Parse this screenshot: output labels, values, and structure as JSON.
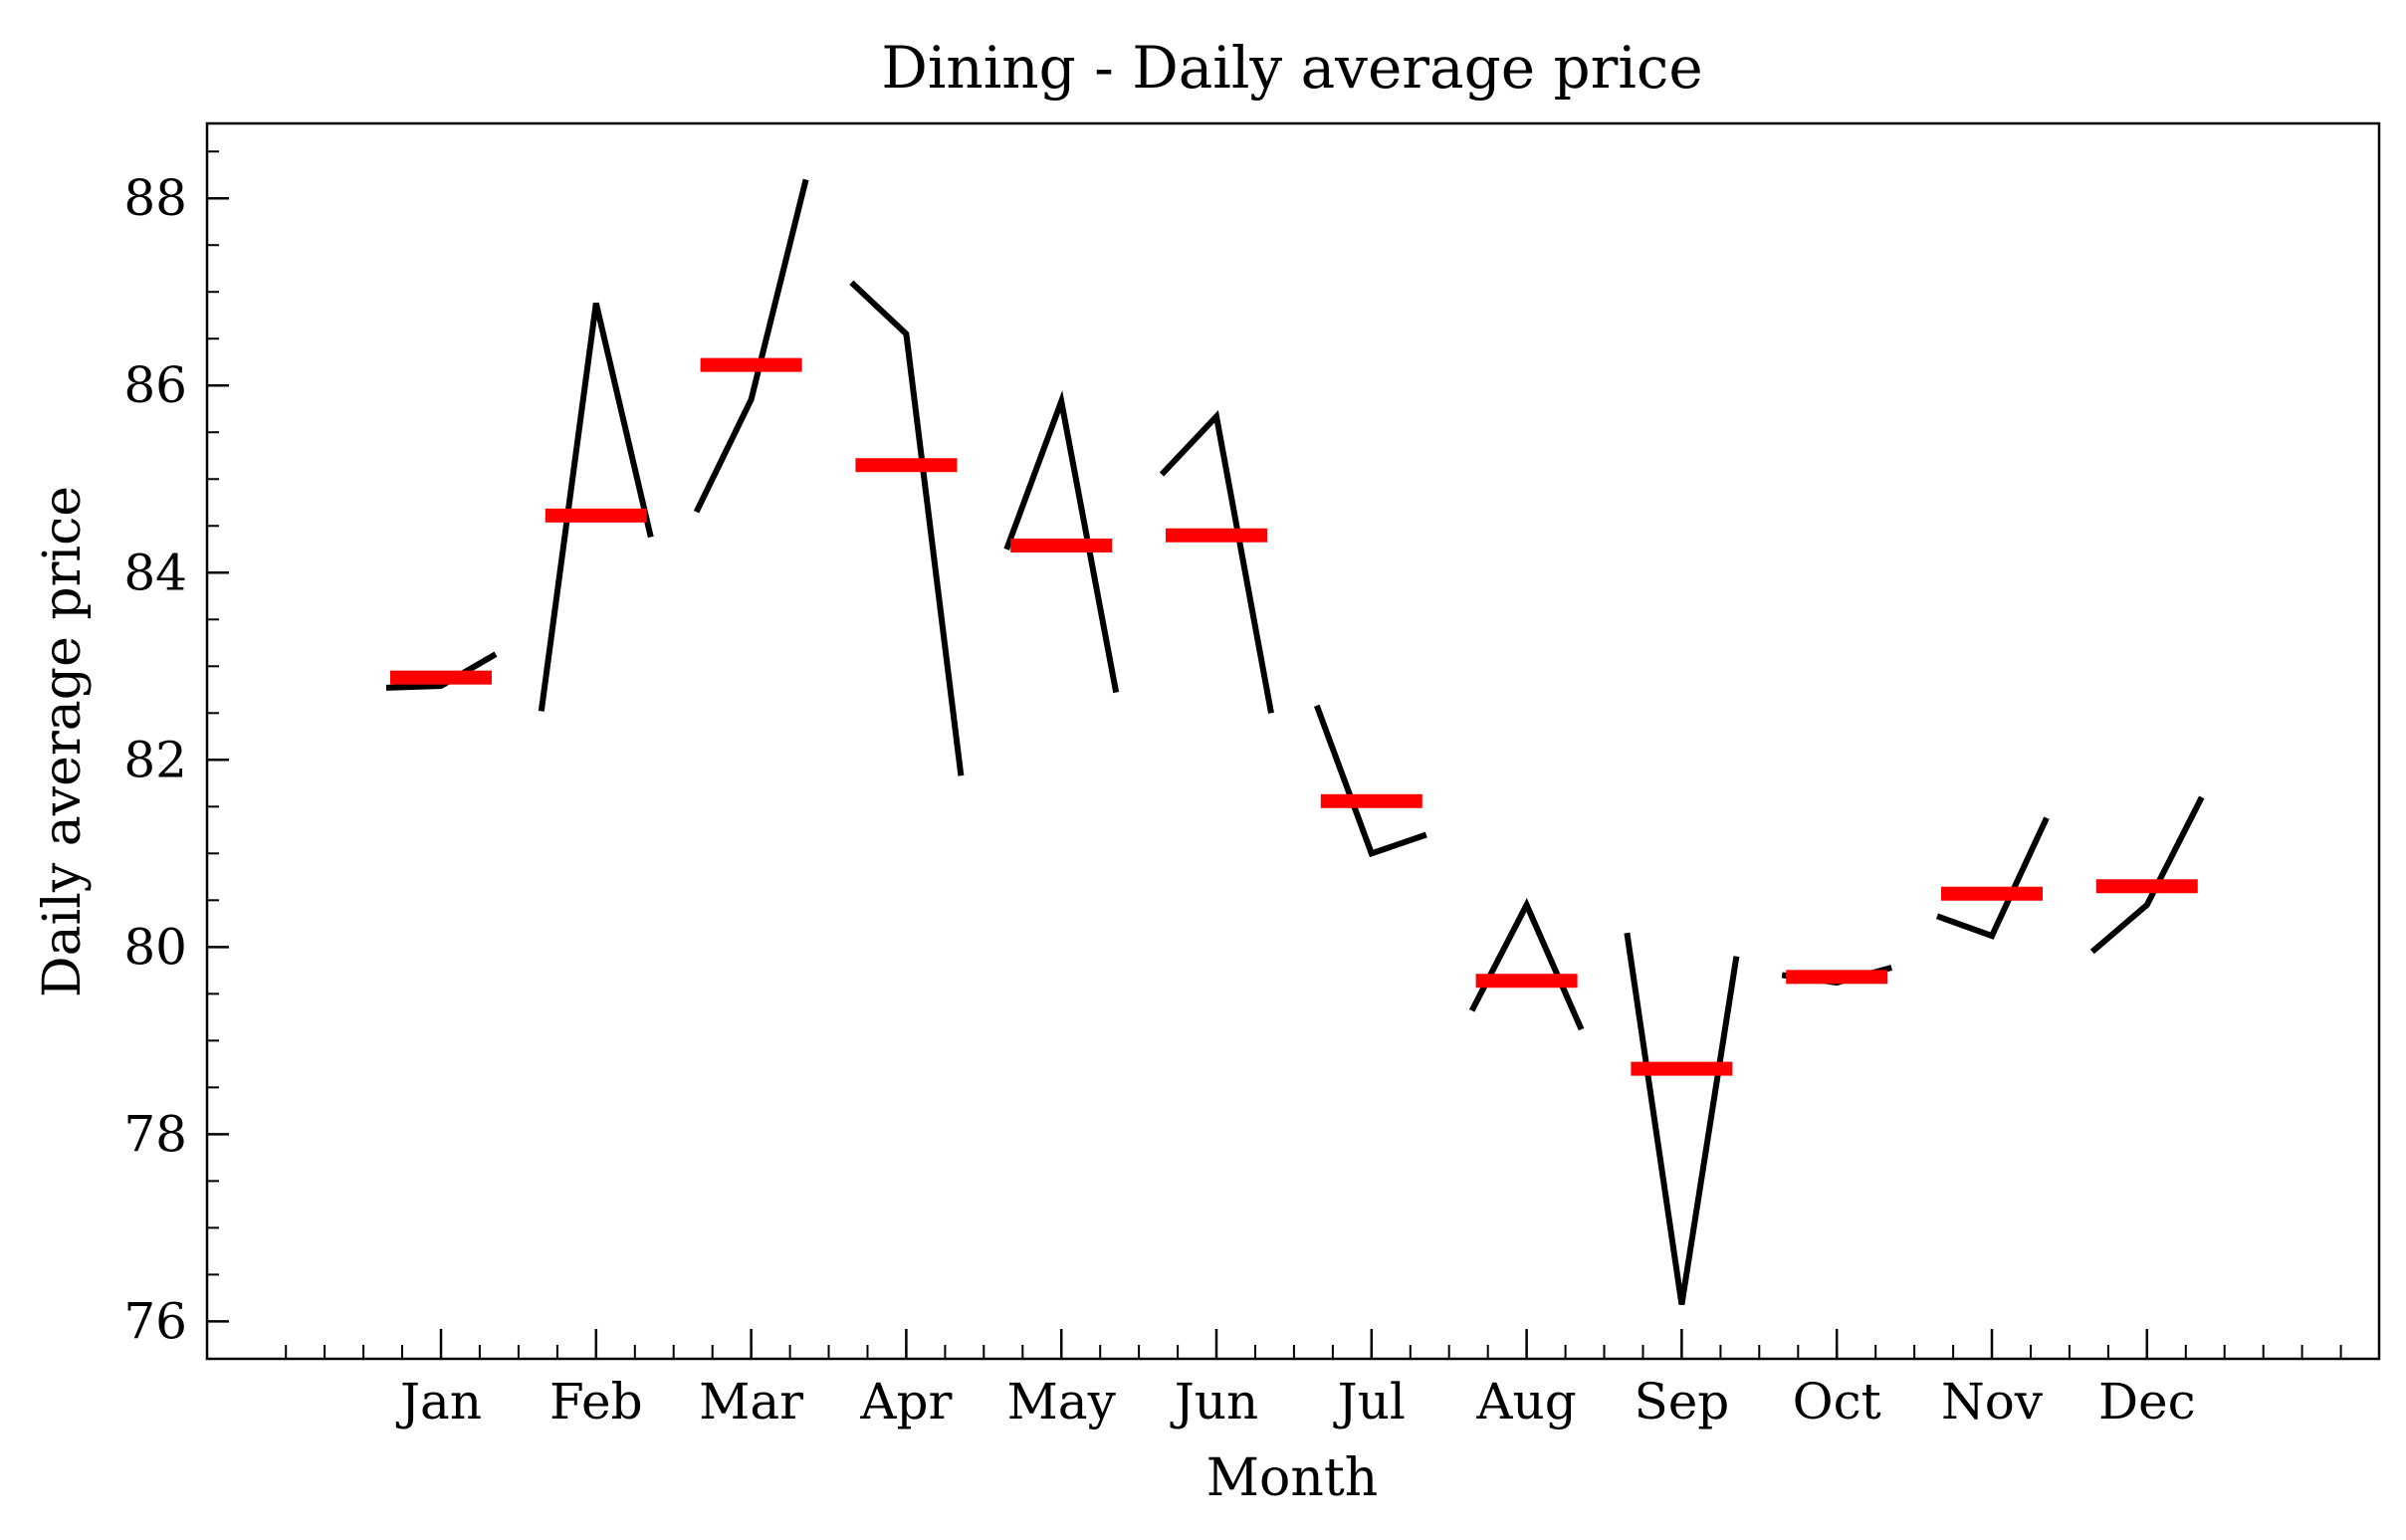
{
  "chart_data": {
    "type": "line",
    "title": "Dining - Daily average price",
    "xlabel": "Month",
    "ylabel": "Daily average price",
    "ylim": [
      75.6,
      88.8
    ],
    "yticks": [
      76,
      78,
      80,
      82,
      84,
      86,
      88
    ],
    "categories": [
      "Jan",
      "Feb",
      "Mar",
      "Apr",
      "May",
      "Jun",
      "Jul",
      "Aug",
      "Sep",
      "Oct",
      "Nov",
      "Dec"
    ],
    "series": [
      {
        "values": [
          [
            82.77,
            82.79,
            83.13
          ],
          [
            82.52,
            86.88,
            84.38
          ],
          [
            84.65,
            85.85,
            88.2
          ],
          [
            87.1,
            86.55,
            81.83
          ],
          [
            84.25,
            85.83,
            82.72
          ],
          [
            85.05,
            85.67,
            82.5
          ],
          [
            82.58,
            81.0,
            81.2
          ],
          [
            79.32,
            80.45,
            79.12
          ],
          [
            80.15,
            76.18,
            79.9
          ],
          [
            79.7,
            79.62,
            79.78
          ],
          [
            80.33,
            80.12,
            81.38
          ],
          [
            79.95,
            80.45,
            81.6
          ]
        ]
      }
    ],
    "means": [
      82.88,
      84.61,
      86.22,
      85.15,
      84.29,
      84.4,
      81.56,
      79.64,
      78.7,
      79.68,
      80.57,
      80.65
    ],
    "colors": {
      "series_line": "#000000",
      "mean_marker": "#ff0000"
    },
    "grid": false,
    "legend": "none"
  }
}
